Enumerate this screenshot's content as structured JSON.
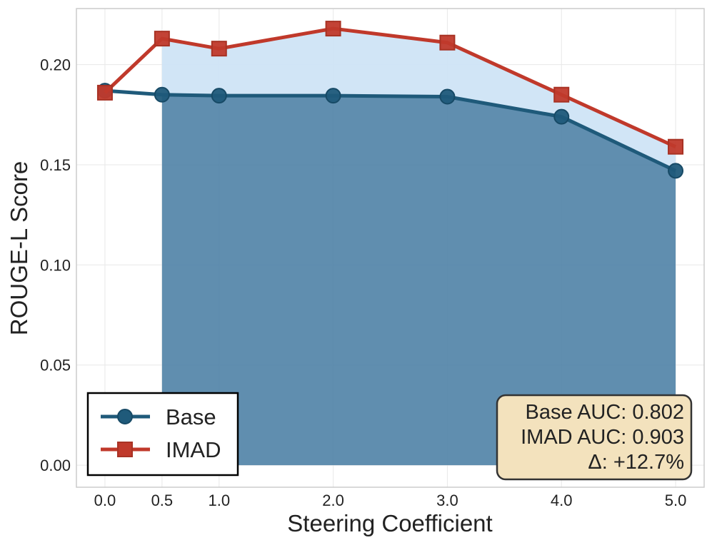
{
  "chart_data": {
    "type": "line",
    "xlabel": "Steering Coefficient",
    "ylabel": "ROUGE-L Score",
    "x": [
      0.0,
      0.5,
      1.0,
      2.0,
      3.0,
      4.0,
      5.0
    ],
    "x_tick_labels": [
      "0.0",
      "0.5",
      "1.0",
      "2.0",
      "3.0",
      "4.0",
      "5.0"
    ],
    "y_ticks": [
      0.0,
      0.05,
      0.1,
      0.15,
      0.2
    ],
    "y_tick_labels": [
      "0.00",
      "0.05",
      "0.10",
      "0.15",
      "0.20"
    ],
    "xlim": [
      -0.25,
      5.25
    ],
    "ylim": [
      -0.011,
      0.228
    ],
    "grid": true,
    "legend_position": "bottom-left",
    "series": [
      {
        "name": "Base",
        "marker": "circle",
        "color": "#1f5a7a",
        "values": [
          0.187,
          0.185,
          0.1845,
          0.1845,
          0.184,
          0.174,
          0.147
        ]
      },
      {
        "name": "IMAD",
        "marker": "square",
        "color": "#c0392b",
        "values": [
          0.186,
          0.213,
          0.208,
          0.218,
          0.211,
          0.185,
          0.159
        ]
      }
    ],
    "shading": {
      "from_x": 0.5,
      "to_x": 5.0,
      "base_area_color": "#4f82a6",
      "gain_area_color": "#cfe4f6"
    },
    "annotation": {
      "lines": [
        "Base AUC: 0.802",
        "IMAD AUC: 0.903",
        "Δ: +12.7%"
      ],
      "box_fill": "#f3e2bd",
      "box_stroke": "#333333"
    }
  }
}
